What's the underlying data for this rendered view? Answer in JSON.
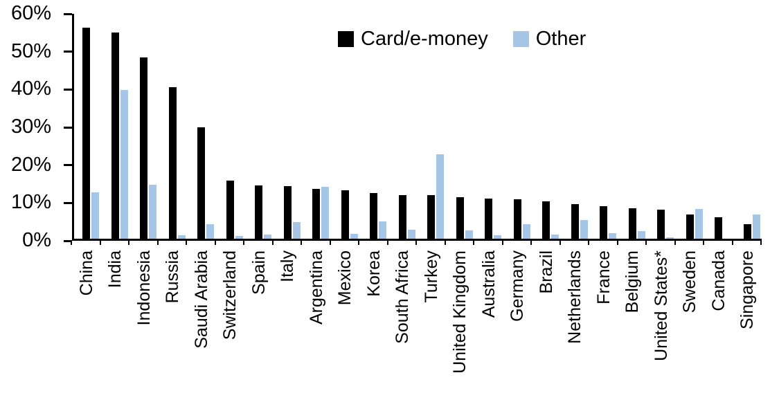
{
  "chart_data": {
    "type": "bar",
    "title": "",
    "xlabel": "",
    "ylabel": "",
    "ylim": [
      0,
      60
    ],
    "ytick_step": 10,
    "yticks": [
      "0%",
      "10%",
      "20%",
      "30%",
      "40%",
      "50%",
      "60%"
    ],
    "grid": false,
    "legend_position": "top-center",
    "categories": [
      "China",
      "India",
      "Indonesia",
      "Russia",
      "Saudi Arabia",
      "Switzerland",
      "Spain",
      "Italy",
      "Argentina",
      "Mexico",
      "Korea",
      "South Africa",
      "Turkey",
      "United Kingdom",
      "Australia",
      "Germany",
      "Brazil",
      "Netherlands",
      "France",
      "Belgium",
      "United States*",
      "Sweden",
      "Canada",
      "Singapore"
    ],
    "series": [
      {
        "name": "Card/e-money",
        "color": "#000000",
        "values": [
          56.3,
          55.0,
          48.3,
          40.4,
          29.8,
          15.6,
          14.2,
          14.1,
          13.3,
          12.9,
          12.2,
          11.7,
          11.6,
          11.1,
          10.8,
          10.6,
          10.0,
          9.2,
          8.7,
          8.2,
          7.8,
          6.5,
          5.8,
          3.8
        ]
      },
      {
        "name": "Other",
        "color": "#A5C6E7",
        "values": [
          12.3,
          39.7,
          14.4,
          1.0,
          3.9,
          0.8,
          1.1,
          4.5,
          13.9,
          1.3,
          4.6,
          2.4,
          22.6,
          2.2,
          1.0,
          3.9,
          1.2,
          5.0,
          1.5,
          2.0,
          0.3,
          8.0,
          0.0,
          6.5
        ]
      }
    ]
  },
  "legend": {
    "card_label": "Card/e-money",
    "other_label": "Other"
  }
}
